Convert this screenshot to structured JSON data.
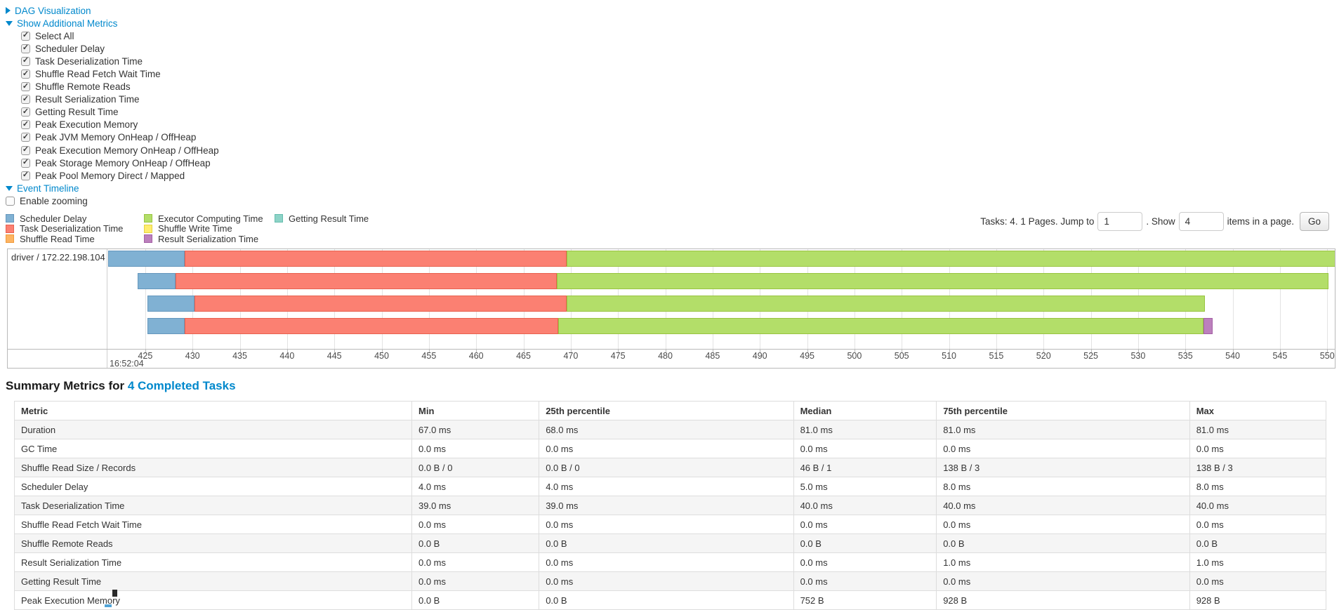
{
  "top": {
    "dag_label": "DAG Visualization",
    "metrics_label": "Show Additional Metrics",
    "timeline_label": "Event Timeline",
    "metric_checkboxes": [
      {
        "label": "Select All",
        "checked": true
      },
      {
        "label": "Scheduler Delay",
        "checked": true
      },
      {
        "label": "Task Deserialization Time",
        "checked": true
      },
      {
        "label": "Shuffle Read Fetch Wait Time",
        "checked": true
      },
      {
        "label": "Shuffle Remote Reads",
        "checked": true
      },
      {
        "label": "Result Serialization Time",
        "checked": true
      },
      {
        "label": "Getting Result Time",
        "checked": true
      },
      {
        "label": "Peak Execution Memory",
        "checked": true
      },
      {
        "label": "Peak JVM Memory OnHeap / OffHeap",
        "checked": true
      },
      {
        "label": "Peak Execution Memory OnHeap / OffHeap",
        "checked": true
      },
      {
        "label": "Peak Storage Memory OnHeap / OffHeap",
        "checked": true
      },
      {
        "label": "Peak Pool Memory Direct / Mapped",
        "checked": true
      }
    ],
    "enable_zooming": {
      "label": "Enable zooming",
      "checked": false
    }
  },
  "legend": {
    "items": [
      {
        "key": "scheduler-delay",
        "label": "Scheduler Delay",
        "color": "#80B1D3",
        "border": "#6597bd"
      },
      {
        "key": "task-deserialization",
        "label": "Task Deserialization Time",
        "color": "#FB8072",
        "border": "#e8614f"
      },
      {
        "key": "shuffle-read",
        "label": "Shuffle Read Time",
        "color": "#FDB462",
        "border": "#f09a3c"
      },
      {
        "key": "executor-computing",
        "label": "Executor Computing Time",
        "color": "#B3DE69",
        "border": "#98c440"
      },
      {
        "key": "shuffle-write",
        "label": "Shuffle Write Time",
        "color": "#FFED6F",
        "border": "#e6d33f"
      },
      {
        "key": "result-serialization",
        "label": "Result Serialization Time",
        "color": "#BC80BD",
        "border": "#a35fa4"
      },
      {
        "key": "getting-result",
        "label": "Getting Result Time",
        "color": "#8DD3C7",
        "border": "#65bdae"
      }
    ]
  },
  "pagination": {
    "tasks_text": "Tasks: 4. 1 Pages. Jump to",
    "jump_value": "1",
    "show_text": ". Show",
    "show_value": "4",
    "items_text": "items in a page.",
    "go_label": "Go"
  },
  "chart_data": {
    "type": "timeline-gantt",
    "title": "Event Timeline",
    "row_label": "driver / 172.22.198.104",
    "x_axis": {
      "domain": [
        421,
        550.8
      ],
      "ticks": [
        425,
        430,
        435,
        440,
        445,
        450,
        455,
        460,
        465,
        470,
        475,
        480,
        485,
        490,
        495,
        500,
        505,
        510,
        515,
        520,
        525,
        530,
        535,
        540,
        545,
        550
      ],
      "time_label": "16:52:04",
      "units": "milliseconds within second 16:52:04",
      "grid": true
    },
    "tasks": [
      {
        "segments": [
          {
            "name": "scheduler-delay",
            "start": 421.05,
            "end": 429.2
          },
          {
            "name": "task-deserialization",
            "start": 429.2,
            "end": 469.6
          },
          {
            "name": "executor-computing",
            "start": 469.6,
            "end": 551.0
          }
        ]
      },
      {
        "segments": [
          {
            "name": "scheduler-delay",
            "start": 424.2,
            "end": 428.2
          },
          {
            "name": "task-deserialization",
            "start": 428.2,
            "end": 468.5
          },
          {
            "name": "executor-computing",
            "start": 468.5,
            "end": 550.1
          }
        ]
      },
      {
        "segments": [
          {
            "name": "scheduler-delay",
            "start": 425.2,
            "end": 430.2
          },
          {
            "name": "task-deserialization",
            "start": 430.2,
            "end": 469.6
          },
          {
            "name": "executor-computing",
            "start": 469.6,
            "end": 537.1
          }
        ]
      },
      {
        "segments": [
          {
            "name": "scheduler-delay",
            "start": 425.2,
            "end": 429.2
          },
          {
            "name": "task-deserialization",
            "start": 429.2,
            "end": 468.7
          },
          {
            "name": "executor-computing",
            "start": 468.7,
            "end": 536.9
          },
          {
            "name": "result-serialization",
            "start": 536.9,
            "end": 537.9
          }
        ]
      }
    ]
  },
  "summary": {
    "title_prefix": "Summary Metrics for ",
    "title_link": "4 Completed Tasks",
    "table": {
      "headers": [
        "Metric",
        "Min",
        "25th percentile",
        "Median",
        "75th percentile",
        "Max"
      ],
      "col_widths_pct": [
        30.3,
        9.7,
        19.4,
        10.9,
        19.3,
        10.4
      ],
      "rows": [
        [
          "Duration",
          "67.0 ms",
          "68.0 ms",
          "81.0 ms",
          "81.0 ms",
          "81.0 ms"
        ],
        [
          "GC Time",
          "0.0 ms",
          "0.0 ms",
          "0.0 ms",
          "0.0 ms",
          "0.0 ms"
        ],
        [
          "Shuffle Read Size / Records",
          "0.0 B / 0",
          "0.0 B / 0",
          "46 B / 1",
          "138 B / 3",
          "138 B / 3"
        ],
        [
          "Scheduler Delay",
          "4.0 ms",
          "4.0 ms",
          "5.0 ms",
          "8.0 ms",
          "8.0 ms"
        ],
        [
          "Task Deserialization Time",
          "39.0 ms",
          "39.0 ms",
          "40.0 ms",
          "40.0 ms",
          "40.0 ms"
        ],
        [
          "Shuffle Read Fetch Wait Time",
          "0.0 ms",
          "0.0 ms",
          "0.0 ms",
          "0.0 ms",
          "0.0 ms"
        ],
        [
          "Shuffle Remote Reads",
          "0.0 B",
          "0.0 B",
          "0.0 B",
          "0.0 B",
          "0.0 B"
        ],
        [
          "Result Serialization Time",
          "0.0 ms",
          "0.0 ms",
          "0.0 ms",
          "1.0 ms",
          "1.0 ms"
        ],
        [
          "Getting Result Time",
          "0.0 ms",
          "0.0 ms",
          "0.0 ms",
          "0.0 ms",
          "0.0 ms"
        ],
        [
          "Peak Execution Memory",
          "0.0 B",
          "0.0 B",
          "752 B",
          "928 B",
          "928 B"
        ]
      ]
    }
  },
  "colors": {
    "link": "#0088cc",
    "chart_border": "#b9b9b9",
    "gridline": "#e3e3e3",
    "table_stripe": "#f5f5f5"
  }
}
